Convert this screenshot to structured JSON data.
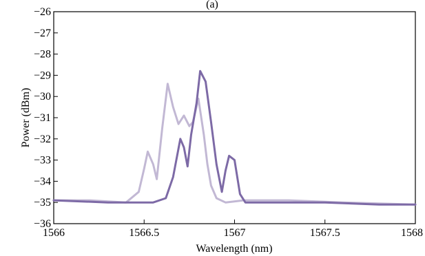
{
  "chart_data": {
    "type": "line",
    "title": "(a)",
    "xlabel": "Wavelength (nm)",
    "ylabel": "Power (dBm)",
    "xlim": [
      1566,
      1568
    ],
    "ylim": [
      -36,
      -26
    ],
    "x_ticks": [
      "1566",
      "1566.5",
      "1567",
      "1567.5",
      "1568"
    ],
    "y_ticks": [
      "−26",
      "−27",
      "−28",
      "−29",
      "−30",
      "−31",
      "−32",
      "−33",
      "−34",
      "−35",
      "−36"
    ],
    "grid": false,
    "series": [
      {
        "color": "#c2b8d4",
        "x": [
          1566.0,
          1566.2,
          1566.4,
          1566.47,
          1566.5,
          1566.52,
          1566.55,
          1566.57,
          1566.6,
          1566.63,
          1566.66,
          1566.69,
          1566.72,
          1566.75,
          1566.77,
          1566.8,
          1566.83,
          1566.85,
          1566.87,
          1566.9,
          1566.95,
          1567.05,
          1567.3,
          1567.6,
          1568.0
        ],
        "y": [
          -34.9,
          -34.9,
          -35.0,
          -34.5,
          -33.4,
          -32.6,
          -33.2,
          -33.9,
          -31.5,
          -29.4,
          -30.5,
          -31.3,
          -30.9,
          -31.4,
          -31.2,
          -30.1,
          -31.8,
          -33.2,
          -34.2,
          -34.8,
          -35.0,
          -34.9,
          -34.9,
          -35.0,
          -35.1
        ]
      },
      {
        "color": "#7d6aa6",
        "x": [
          1566.0,
          1566.3,
          1566.55,
          1566.62,
          1566.66,
          1566.7,
          1566.72,
          1566.74,
          1566.76,
          1566.79,
          1566.81,
          1566.84,
          1566.87,
          1566.9,
          1566.93,
          1566.95,
          1566.97,
          1567.0,
          1567.03,
          1567.06,
          1567.2,
          1567.5,
          1567.8,
          1568.0
        ],
        "y": [
          -34.9,
          -35.0,
          -35.0,
          -34.8,
          -33.8,
          -32.0,
          -32.4,
          -33.3,
          -31.8,
          -30.3,
          -28.8,
          -29.3,
          -31.2,
          -33.2,
          -34.5,
          -33.5,
          -32.8,
          -33.0,
          -34.6,
          -35.0,
          -35.0,
          -35.0,
          -35.1,
          -35.1
        ]
      }
    ]
  }
}
